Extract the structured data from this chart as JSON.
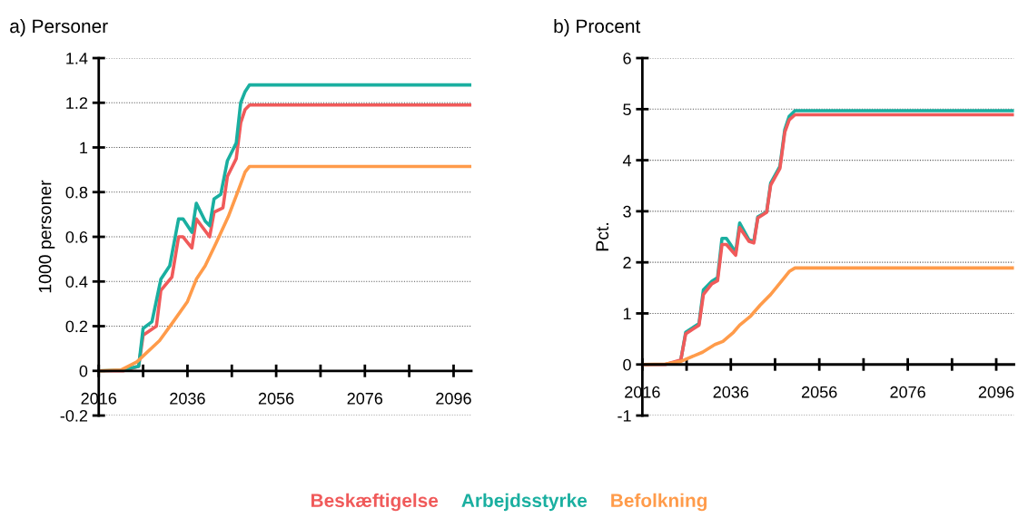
{
  "chart_data": [
    {
      "type": "line",
      "title": "a) Personer",
      "ylabel": "1000 personer",
      "xlim": [
        2016,
        2100
      ],
      "xticks": [
        2016,
        {
          "value": 2026,
          "label": null
        },
        2036,
        {
          "value": 2046,
          "label": null
        },
        2056,
        {
          "value": 2066,
          "label": null
        },
        2076,
        {
          "value": 2086,
          "label": null
        },
        2096
      ],
      "ylim": [
        -0.2,
        1.4
      ],
      "yticks": [
        -0.2,
        0,
        0.2,
        0.4,
        0.6,
        0.8,
        1,
        1.2,
        1.4
      ],
      "grid": "y",
      "legend": "bottom",
      "series": [
        {
          "name": "Beskæftigelse",
          "color": "#f05a5a",
          "x": [
            2016,
            2021.5,
            2025,
            2026,
            2029,
            2030,
            2032.5,
            2034,
            2035,
            2037,
            2038,
            2041,
            2042,
            2044,
            2045,
            2047,
            2048,
            2049,
            2050,
            2100
          ],
          "values": [
            0,
            0,
            0.02,
            0.16,
            0.2,
            0.36,
            0.42,
            0.6,
            0.6,
            0.55,
            0.68,
            0.6,
            0.71,
            0.73,
            0.87,
            0.95,
            1.11,
            1.17,
            1.19,
            1.19
          ]
        },
        {
          "name": "Arbejdsstyrke",
          "color": "#1aafa0",
          "x": [
            2016,
            2021,
            2025,
            2026,
            2028,
            2030,
            2032,
            2034,
            2035,
            2037,
            2038,
            2040,
            2041,
            2042,
            2043.5,
            2045,
            2047,
            2048,
            2049,
            2050,
            2100
          ],
          "values": [
            0,
            0.003,
            0.02,
            0.19,
            0.22,
            0.41,
            0.47,
            0.68,
            0.68,
            0.62,
            0.75,
            0.67,
            0.65,
            0.77,
            0.79,
            0.94,
            1.02,
            1.2,
            1.25,
            1.28,
            1.28
          ]
        },
        {
          "name": "Befolkning",
          "color": "#ff9b4a",
          "x": [
            2016,
            2021,
            2024.6,
            2029.7,
            2032.8,
            2036,
            2038,
            2040,
            2042.4,
            2045.2,
            2047.5,
            2049,
            2050,
            2100
          ],
          "values": [
            0,
            0.004,
            0.04,
            0.135,
            0.22,
            0.31,
            0.41,
            0.47,
            0.57,
            0.69,
            0.81,
            0.89,
            0.915,
            0.915
          ]
        }
      ]
    },
    {
      "type": "line",
      "title": "b) Procent",
      "ylabel": "Pct.",
      "xlim": [
        2016,
        2100
      ],
      "xticks": [
        2016,
        {
          "value": 2026,
          "label": null
        },
        2036,
        {
          "value": 2046,
          "label": null
        },
        2056,
        {
          "value": 2066,
          "label": null
        },
        2076,
        {
          "value": 2086,
          "label": null
        },
        2096
      ],
      "ylim": [
        -1,
        6
      ],
      "yticks": [
        -1,
        0,
        1,
        2,
        3,
        4,
        5,
        6
      ],
      "grid": "y",
      "series": [
        {
          "color": "#1aafa0",
          "x": [
            2024.7,
            2025.8,
            2028.8,
            2029.8,
            2031.7,
            2033,
            2034,
            2035,
            2037.1,
            2038,
            2040.1,
            2041.2,
            2042.1,
            2044.1,
            2045,
            2047.1,
            2048.2,
            2049.2,
            2050.5,
            2100
          ],
          "values": [
            0.09,
            0.63,
            0.8,
            1.46,
            1.63,
            1.7,
            2.47,
            2.47,
            2.2,
            2.77,
            2.44,
            2.41,
            2.89,
            2.99,
            3.55,
            3.88,
            4.6,
            4.86,
            4.97,
            4.97
          ]
        },
        {
          "color": "#f05a5a",
          "x": [
            2016,
            2021.2,
            2024.7,
            2025.8,
            2028.8,
            2029.8,
            2031.7,
            2033,
            2034,
            2035,
            2037.1,
            2038,
            2040.1,
            2041.2,
            2042.1,
            2044.1,
            2045,
            2047.1,
            2048.2,
            2049.2,
            2050.5,
            2100
          ],
          "values": [
            0,
            0,
            0.09,
            0.6,
            0.77,
            1.37,
            1.58,
            1.64,
            2.35,
            2.35,
            2.14,
            2.68,
            2.41,
            2.38,
            2.87,
            2.98,
            3.51,
            3.84,
            4.55,
            4.79,
            4.89,
            4.89
          ]
        },
        {
          "color": "#ff9b4a",
          "x": [
            2016,
            2021.2,
            2024.7,
            2029.6,
            2032.4,
            2034.2,
            2036.6,
            2038,
            2040.5,
            2042.6,
            2045,
            2046.8,
            2049.2,
            2050.5,
            2100
          ],
          "values": [
            0,
            0.01,
            0.06,
            0.24,
            0.39,
            0.45,
            0.63,
            0.77,
            0.95,
            1.16,
            1.37,
            1.56,
            1.82,
            1.89,
            1.89
          ]
        }
      ]
    }
  ]
}
